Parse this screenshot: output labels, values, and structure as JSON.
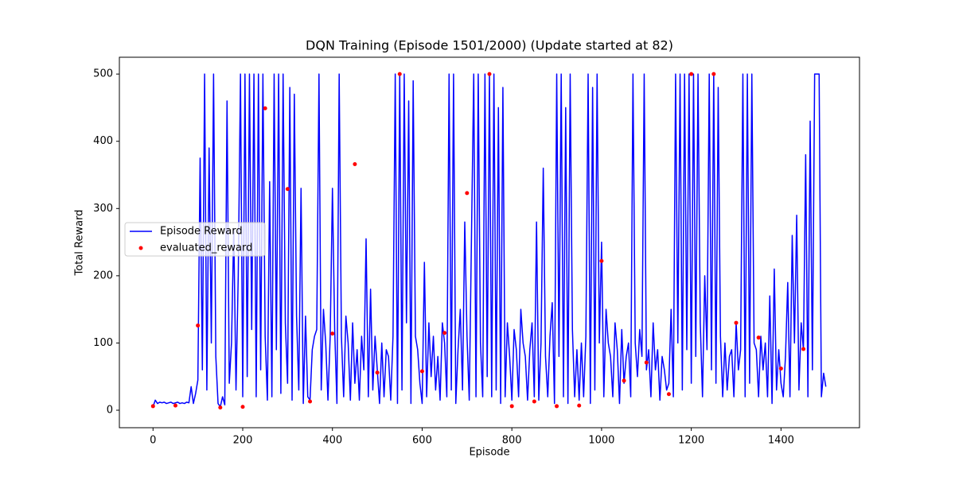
{
  "chart_data": {
    "type": "line",
    "title": "DQN Training (Episode 1501/2000) (Update started at 82)",
    "x_label": "Episode",
    "y_label": "Total Reward",
    "xlim": [
      -75,
      1575
    ],
    "ylim": [
      -26,
      525
    ],
    "xticks": [
      0,
      200,
      400,
      600,
      800,
      1000,
      1200,
      1400
    ],
    "yticks": [
      0,
      100,
      200,
      300,
      400,
      500
    ],
    "legend": "center left",
    "series": [
      {
        "name": "Episode Reward",
        "type": "line",
        "color": "#0000ff",
        "x": [
          0,
          5,
          10,
          15,
          20,
          25,
          30,
          35,
          40,
          45,
          50,
          55,
          60,
          65,
          70,
          75,
          80,
          85,
          90,
          95,
          100,
          105,
          110,
          115,
          120,
          125,
          130,
          135,
          140,
          145,
          150,
          155,
          160,
          165,
          170,
          175,
          180,
          185,
          190,
          195,
          200,
          205,
          210,
          215,
          220,
          225,
          230,
          235,
          240,
          245,
          250,
          255,
          260,
          265,
          270,
          275,
          280,
          285,
          290,
          295,
          300,
          305,
          310,
          315,
          320,
          325,
          330,
          335,
          340,
          345,
          350,
          355,
          360,
          365,
          370,
          375,
          380,
          385,
          390,
          395,
          400,
          405,
          410,
          415,
          420,
          425,
          430,
          435,
          440,
          445,
          450,
          455,
          460,
          465,
          470,
          475,
          480,
          485,
          490,
          495,
          500,
          505,
          510,
          515,
          520,
          525,
          530,
          535,
          540,
          545,
          550,
          555,
          560,
          565,
          570,
          575,
          580,
          585,
          590,
          595,
          600,
          605,
          610,
          615,
          620,
          625,
          630,
          635,
          640,
          645,
          650,
          655,
          660,
          665,
          670,
          675,
          680,
          685,
          690,
          695,
          700,
          705,
          710,
          715,
          720,
          725,
          730,
          735,
          740,
          745,
          750,
          755,
          760,
          765,
          770,
          775,
          780,
          785,
          790,
          795,
          800,
          805,
          810,
          815,
          820,
          825,
          830,
          835,
          840,
          845,
          850,
          855,
          860,
          865,
          870,
          875,
          880,
          885,
          890,
          895,
          900,
          905,
          910,
          915,
          920,
          925,
          930,
          935,
          940,
          945,
          950,
          955,
          960,
          965,
          970,
          975,
          980,
          985,
          990,
          995,
          1000,
          1005,
          1010,
          1015,
          1020,
          1025,
          1030,
          1035,
          1040,
          1045,
          1050,
          1055,
          1060,
          1065,
          1070,
          1075,
          1080,
          1085,
          1090,
          1095,
          1100,
          1105,
          1110,
          1115,
          1120,
          1125,
          1130,
          1135,
          1140,
          1145,
          1150,
          1155,
          1160,
          1165,
          1170,
          1175,
          1180,
          1185,
          1190,
          1195,
          1200,
          1205,
          1210,
          1215,
          1220,
          1225,
          1230,
          1235,
          1240,
          1245,
          1250,
          1255,
          1260,
          1265,
          1270,
          1275,
          1280,
          1285,
          1290,
          1295,
          1300,
          1305,
          1310,
          1315,
          1320,
          1325,
          1330,
          1335,
          1340,
          1345,
          1350,
          1355,
          1360,
          1365,
          1370,
          1375,
          1380,
          1385,
          1390,
          1395,
          1400,
          1405,
          1410,
          1415,
          1420,
          1425,
          1430,
          1435,
          1440,
          1445,
          1450,
          1455,
          1460,
          1465,
          1470,
          1475,
          1480,
          1485,
          1490,
          1495,
          1500
        ],
        "values": [
          5,
          15,
          10,
          12,
          11,
          12,
          10,
          11,
          12,
          10,
          11,
          12,
          10,
          11,
          10,
          12,
          11,
          35,
          10,
          25,
          45,
          375,
          60,
          500,
          30,
          390,
          100,
          500,
          80,
          10,
          5,
          20,
          8,
          460,
          40,
          100,
          270,
          30,
          200,
          500,
          20,
          500,
          50,
          500,
          120,
          500,
          20,
          500,
          60,
          500,
          110,
          15,
          340,
          20,
          500,
          90,
          500,
          25,
          500,
          130,
          40,
          480,
          15,
          470,
          140,
          30,
          330,
          10,
          140,
          20,
          15,
          90,
          110,
          120,
          500,
          30,
          150,
          100,
          15,
          110,
          330,
          120,
          10,
          500,
          110,
          20,
          140,
          100,
          15,
          130,
          40,
          90,
          15,
          110,
          60,
          255,
          20,
          180,
          30,
          110,
          60,
          10,
          100,
          20,
          90,
          80,
          15,
          110,
          500,
          10,
          500,
          30,
          500,
          130,
          460,
          10,
          490,
          110,
          90,
          40,
          10,
          220,
          20,
          130,
          50,
          110,
          30,
          80,
          15,
          130,
          100,
          20,
          500,
          30,
          500,
          10,
          90,
          150,
          30,
          280,
          110,
          15,
          260,
          500,
          20,
          500,
          100,
          20,
          500,
          50,
          500,
          20,
          500,
          30,
          450,
          10,
          480,
          20,
          130,
          80,
          15,
          120,
          90,
          20,
          150,
          100,
          80,
          15,
          90,
          130,
          20,
          280,
          15,
          100,
          360,
          80,
          20,
          110,
          160,
          10,
          500,
          80,
          500,
          20,
          450,
          10,
          500,
          120,
          20,
          90,
          15,
          100,
          20,
          110,
          500,
          10,
          480,
          30,
          500,
          100,
          250,
          20,
          150,
          100,
          80,
          20,
          130,
          90,
          10,
          120,
          40,
          80,
          100,
          20,
          500,
          100,
          50,
          120,
          80,
          500,
          60,
          90,
          20,
          130,
          60,
          90,
          15,
          80,
          60,
          30,
          40,
          150,
          20,
          500,
          100,
          500,
          30,
          500,
          90,
          500,
          40,
          500,
          80,
          500,
          130,
          20,
          200,
          90,
          500,
          60,
          500,
          40,
          480,
          110,
          20,
          100,
          30,
          80,
          90,
          20,
          130,
          60,
          90,
          500,
          20,
          500,
          40,
          500,
          100,
          90,
          20,
          110,
          60,
          100,
          20,
          170,
          10,
          210,
          30,
          90,
          40,
          20,
          80,
          190,
          20,
          260,
          100,
          290,
          30,
          130,
          90,
          380,
          20,
          430,
          60,
          500,
          500,
          500,
          20,
          55,
          35
        ]
      },
      {
        "name": "evaluated_reward",
        "type": "scatter",
        "color": "#ff0000",
        "x": [
          0,
          50,
          100,
          150,
          200,
          250,
          300,
          350,
          400,
          450,
          500,
          550,
          600,
          650,
          700,
          750,
          800,
          850,
          900,
          950,
          1000,
          1050,
          1100,
          1150,
          1200,
          1250,
          1300,
          1350,
          1400,
          1450
        ],
        "values": [
          6,
          7,
          126,
          4,
          5,
          449,
          329,
          13,
          114,
          366,
          56,
          500,
          58,
          115,
          323,
          500,
          6,
          13,
          6,
          7,
          222,
          44,
          71,
          24,
          500,
          500,
          130,
          108,
          62,
          91
        ]
      }
    ]
  }
}
